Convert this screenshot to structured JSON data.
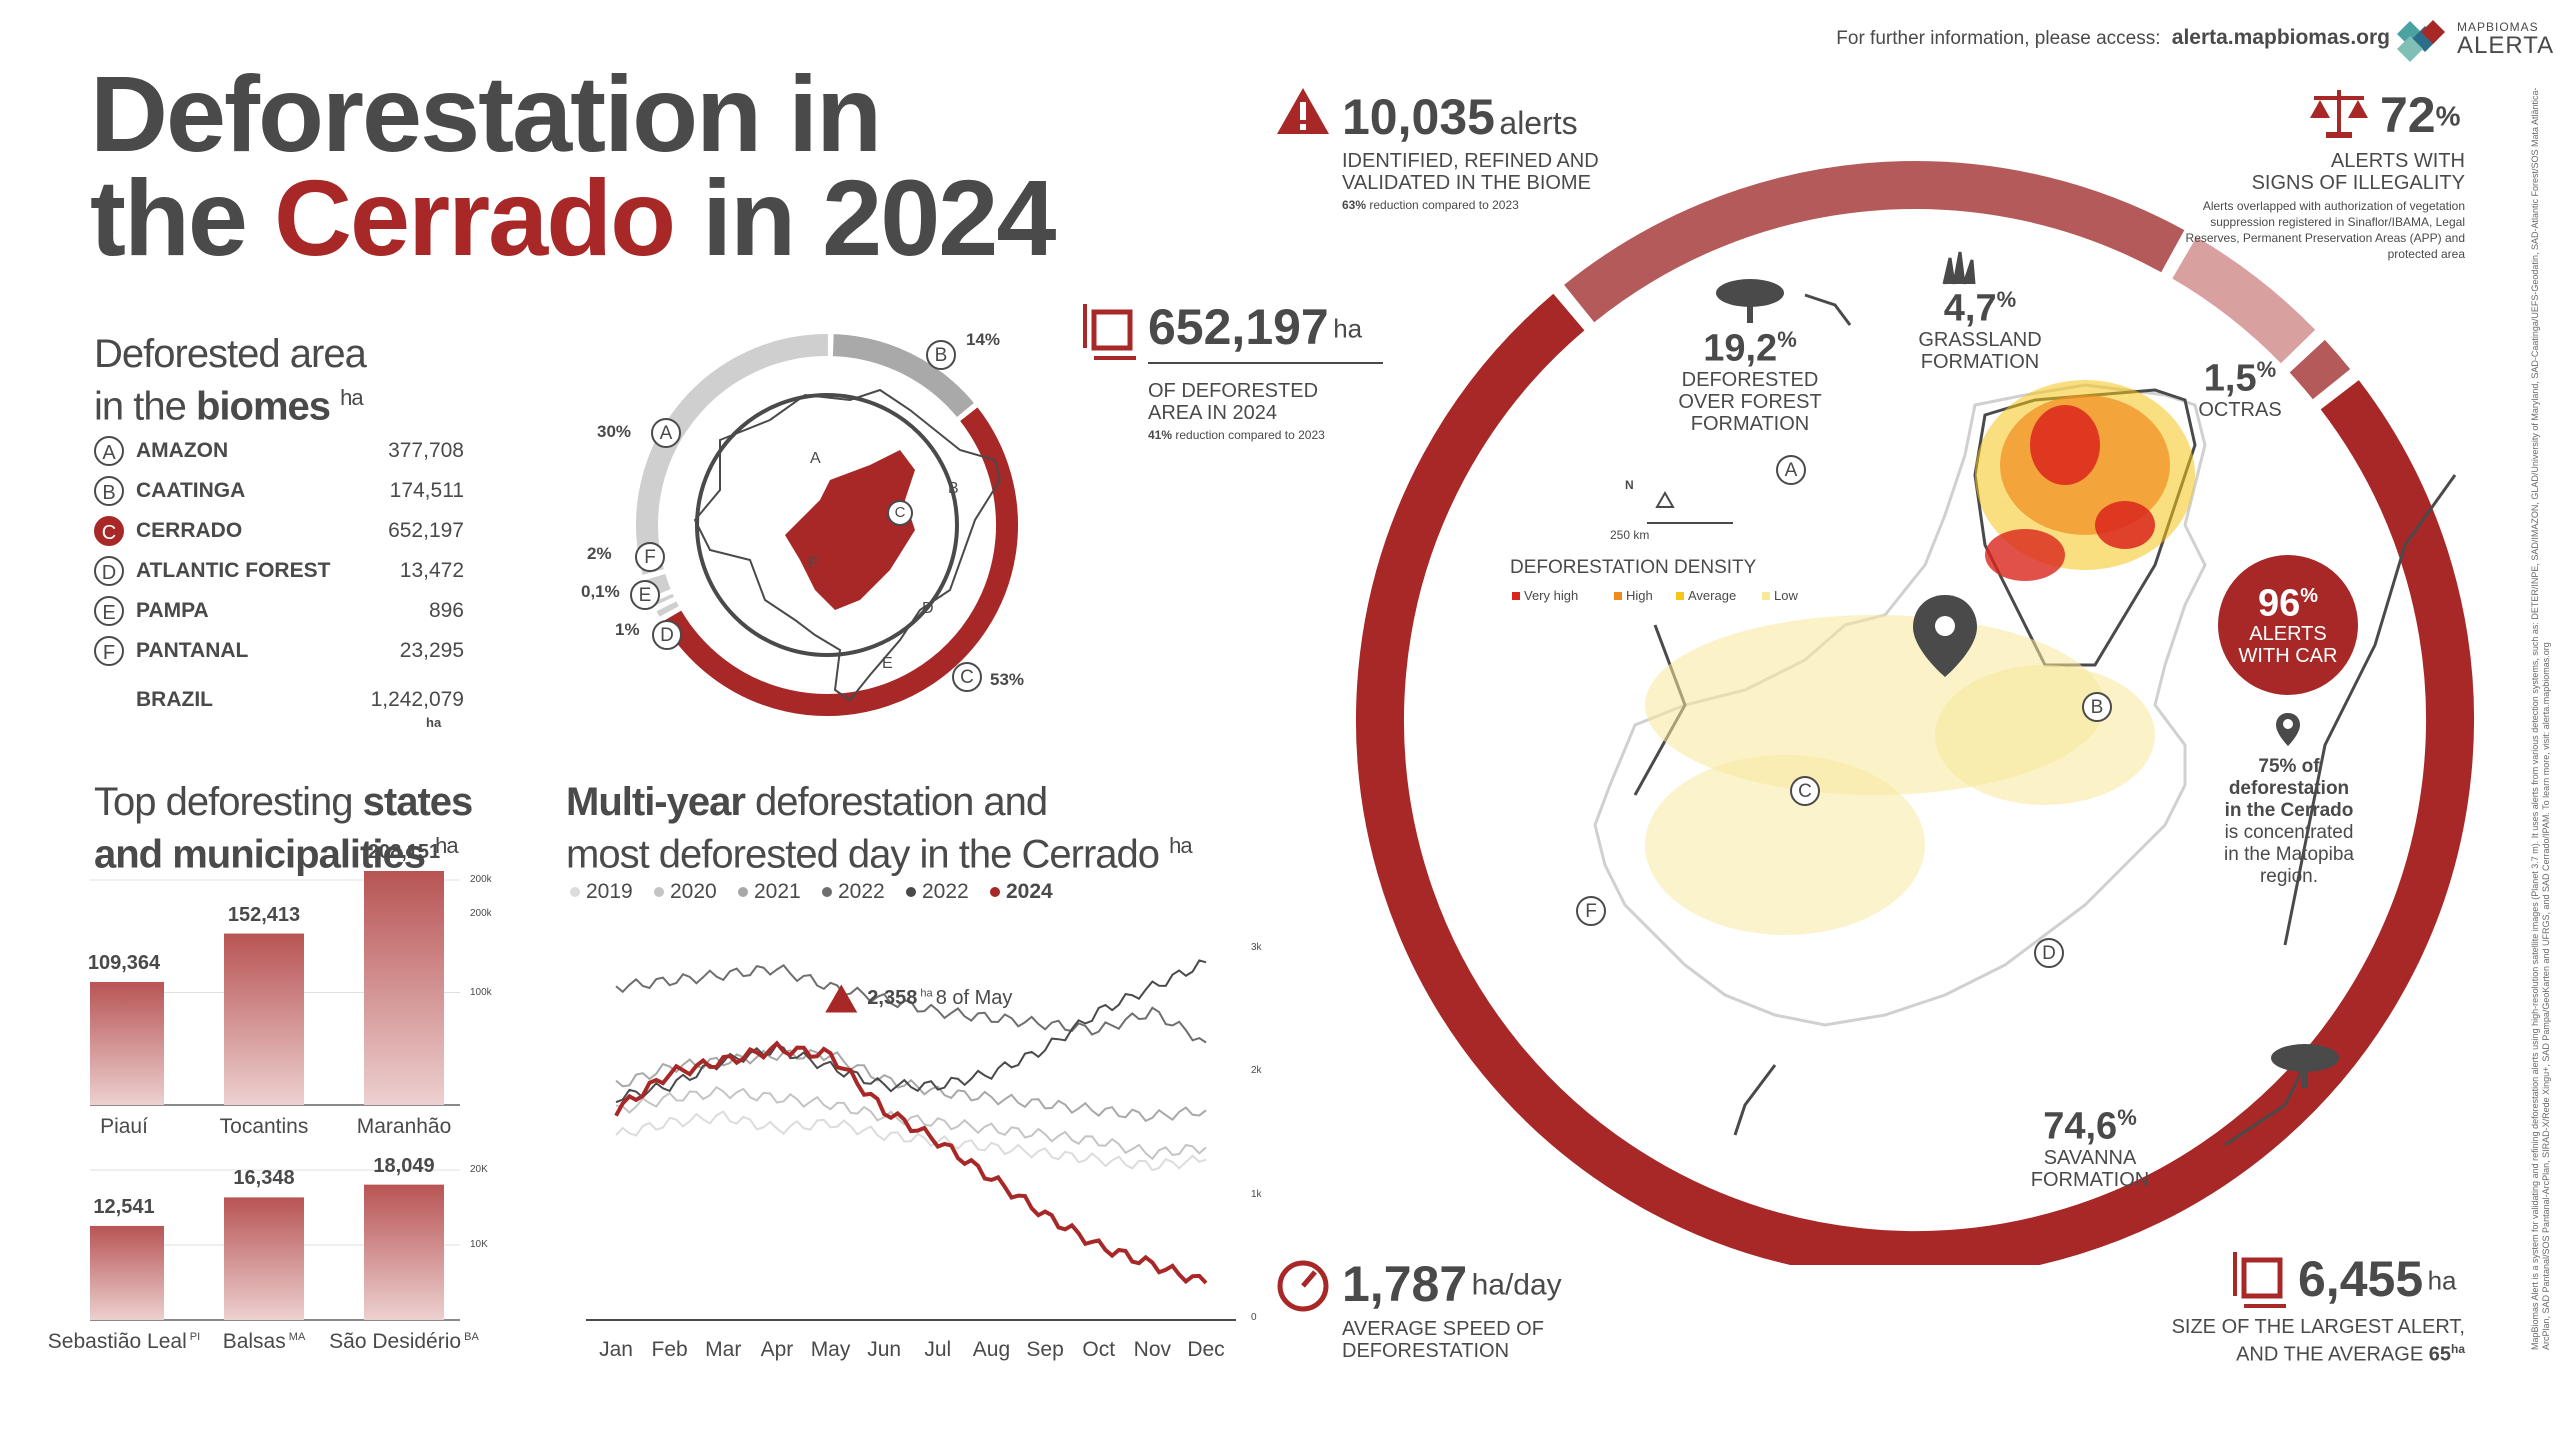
{
  "header": {
    "info_text": "For further information, please access:",
    "info_url": "alerta.mapbiomas.org",
    "logo_top": "MAPBIOMAS",
    "logo_bottom": "ALERTA"
  },
  "title": {
    "line1": "Deforestation in",
    "line2_pre": "the ",
    "line2_red": "Cerrado",
    "line2_post": " in 2024"
  },
  "biomes_section": {
    "heading_pre": "Deforested area",
    "heading_mid": "in the ",
    "heading_bold": "biomes",
    "unit": "ha",
    "rows": [
      {
        "letter": "A",
        "name": "AMAZON",
        "value": "377,708",
        "highlight": false
      },
      {
        "letter": "B",
        "name": "CAATINGA",
        "value": "174,511",
        "highlight": false
      },
      {
        "letter": "C",
        "name": "CERRADO",
        "value": "652,197",
        "highlight": true
      },
      {
        "letter": "D",
        "name": "ATLANTIC FOREST",
        "value": "13,472",
        "highlight": false
      },
      {
        "letter": "E",
        "name": "PAMPA",
        "value": "896",
        "highlight": false
      },
      {
        "letter": "F",
        "name": "PANTANAL",
        "value": "23,295",
        "highlight": false
      }
    ],
    "total_name": "BRAZIL",
    "total_value": "1,242,079",
    "total_unit": "ha"
  },
  "donut": {
    "slices": [
      {
        "letter": "A",
        "pct_label": "30%",
        "value": 30
      },
      {
        "letter": "B",
        "pct_label": "14%",
        "value": 14
      },
      {
        "letter": "C",
        "pct_label": "53%",
        "value": 53
      },
      {
        "letter": "D",
        "pct_label": "1%",
        "value": 1
      },
      {
        "letter": "E",
        "pct_label": "0,1%",
        "value": 0.1
      },
      {
        "letter": "F",
        "pct_label": "2%",
        "value": 2
      }
    ],
    "map_letters": [
      "A",
      "B",
      "C",
      "D",
      "E",
      "F"
    ]
  },
  "states_section": {
    "heading_pre": "Top deforesting ",
    "heading_bold1": "states",
    "heading_bold2": "and municipalities",
    "unit": "ha"
  },
  "multiyear_section": {
    "heading_bold": "Multi-year",
    "heading_rest1": " deforestation and",
    "heading_rest2": "most deforested day in the Cerrado",
    "unit": "ha"
  },
  "colors": {
    "accent": "#a82828",
    "light_red": "#c96b6b",
    "pale_red": "#d9a0a0",
    "grey": "#c8c8c8",
    "dark_text": "#4a4a4a"
  },
  "chart_data": [
    {
      "type": "bar",
      "title": "Top deforesting states",
      "categories": [
        "Piauí",
        "Tocantins",
        "Maranhão"
      ],
      "values": [
        109364,
        152413,
        208151
      ],
      "value_labels": [
        "109,364",
        "152,413",
        "208,151"
      ],
      "ylim": [
        0,
        200000
      ],
      "yticks": [
        "100k",
        "200k",
        "200k"
      ]
    },
    {
      "type": "bar",
      "title": "Top deforesting municipalities",
      "categories": [
        "Sebastião Leal",
        "Balsas",
        "São Desidério"
      ],
      "category_sup": [
        "PI",
        "MA",
        "BA"
      ],
      "values": [
        12541,
        16348,
        18049
      ],
      "value_labels": [
        "12,541",
        "16,348",
        "18,049"
      ],
      "ylim": [
        0,
        20000
      ],
      "yticks": [
        "10K",
        "20K"
      ]
    },
    {
      "type": "line",
      "title": "Multi-year deforestation and most deforested day in the Cerrado",
      "categories": [
        "Jan",
        "Feb",
        "Mar",
        "Apr",
        "May",
        "Jun",
        "Jul",
        "Aug",
        "Sep",
        "Oct",
        "Nov",
        "Dec"
      ],
      "yticks": [
        "0",
        "1k",
        "2k",
        "3k"
      ],
      "ylim": [
        0,
        3000
      ],
      "annotation": {
        "value": "2,358",
        "unit": "ha",
        "date": "8 of May"
      },
      "series": [
        {
          "name": "2019",
          "color": "#dcdcdc",
          "values": [
            1500,
            1600,
            1650,
            1550,
            1600,
            1500,
            1450,
            1400,
            1350,
            1300,
            1250,
            1300
          ]
        },
        {
          "name": "2020",
          "color": "#c4c4c4",
          "values": [
            1700,
            1800,
            1850,
            1800,
            1750,
            1650,
            1600,
            1550,
            1500,
            1450,
            1350,
            1400
          ]
        },
        {
          "name": "2021",
          "color": "#a8a8a8",
          "values": [
            1900,
            2050,
            2100,
            2150,
            2150,
            1950,
            1850,
            1800,
            1750,
            1700,
            1650,
            1700
          ]
        },
        {
          "name": "2022",
          "color": "#6e6e6e",
          "values": [
            2700,
            2750,
            2800,
            2850,
            2700,
            2600,
            2500,
            2450,
            2400,
            2350,
            2500,
            2250
          ]
        },
        {
          "name": "2022",
          "color": "#4a4a4a",
          "values": [
            1800,
            1900,
            2100,
            2200,
            2050,
            1900,
            1900,
            2000,
            2200,
            2500,
            2700,
            2900
          ]
        },
        {
          "name": "2024",
          "color": "#a82828",
          "values": [
            1700,
            2000,
            2100,
            2200,
            2150,
            1700,
            1450,
            1150,
            850,
            600,
            450,
            300
          ]
        }
      ]
    }
  ],
  "stats": {
    "alerts": {
      "number": "10,035",
      "unit": "alerts",
      "line1": "IDENTIFIED, REFINED AND",
      "line2": "VALIDATED IN THE BIOME",
      "note_bold": "63%",
      "note": " reduction compared to 2023"
    },
    "area": {
      "number": "652,197",
      "unit": "ha",
      "line1": "OF DEFORESTED",
      "line2": "AREA IN 2024",
      "note_bold": "41%",
      "note": " reduction compared to 2023"
    },
    "illegality": {
      "number": "72",
      "unit": "%",
      "line1": "ALERTS WITH",
      "line2": "SIGNS OF ILLEGALITY",
      "note": "Alerts overlapped with authorization of vegetation suppression registered in Sinaflor/IBAMA, Legal Reserves, Permanent Preservation Areas (APP) and protected area"
    },
    "speed": {
      "number": "1,787",
      "unit": "ha/day",
      "line1": "AVERAGE SPEED OF",
      "line2": "DEFORESTATION"
    },
    "largest": {
      "number": "6,455",
      "unit": "ha",
      "line1": "SIZE OF THE LARGEST ALERT,",
      "line2": "AND THE AVERAGE",
      "avg": "65",
      "avg_unit": "ha"
    },
    "car": {
      "number": "96",
      "unit": "%",
      "line1": "ALERTS",
      "line2": "WITH CAR"
    },
    "matopiba": {
      "pct": "75% of",
      "line1": "deforestation",
      "line2": "in the Cerrado",
      "line3": "is concentrated",
      "line4": "in the Matopiba",
      "line5": "region."
    }
  },
  "ring": {
    "segments": [
      {
        "name": "forest",
        "value": 19.2,
        "label_num": "19,2",
        "label_unit": "%",
        "line1": "DEFORESTED",
        "line2": "OVER FOREST",
        "line3": "FORMATION",
        "color": "#b45a5a"
      },
      {
        "name": "grassland",
        "value": 4.7,
        "label_num": "4,7",
        "label_unit": "%",
        "line1": "GRASSLAND",
        "line2": "FORMATION",
        "color": "#d9a0a0"
      },
      {
        "name": "others",
        "value": 1.5,
        "label_num": "1,5",
        "label_unit": "%",
        "line1": "OCTRAS",
        "color": "#b45a5a"
      },
      {
        "name": "savanna",
        "value": 74.6,
        "label_num": "74,6",
        "label_unit": "%",
        "line1": "SAVANNA",
        "line2": "FORMATION",
        "color": "#a82828"
      }
    ]
  },
  "map": {
    "scale": "250 km",
    "north": "N",
    "density_title": "DEFORESTATION DENSITY",
    "density_levels": [
      {
        "label": "Very high",
        "color": "#d9261c"
      },
      {
        "label": "High",
        "color": "#f08a1c"
      },
      {
        "label": "Average",
        "color": "#f5c518"
      },
      {
        "label": "Low",
        "color": "#f7e89a"
      }
    ],
    "letters": [
      "A",
      "B",
      "C",
      "D",
      "F"
    ]
  },
  "side_note": "MapBiomas Alert is a system for validating and refining deforestation alerts using high-resolution satellite images (Planet 3.7 m). It uses alerts from various detection systems, such as: DETER/INPE, SAD/IMAZON, GLAD/University of Maryland, SAD-Caatinga/UEFS-Geodatin, SAD-Atlantic Forest/SOS Mata Atlântica-ArcPlan, SAD Pantanal/SOS Pantanal-ArcPlan, SIRAD-X/Rede Xingu+, SAD Pampa/GeoKarten and UFRGS, and SAD Cerrado/IPAM. To learn more, visit: alerta.mapbiomas.org"
}
